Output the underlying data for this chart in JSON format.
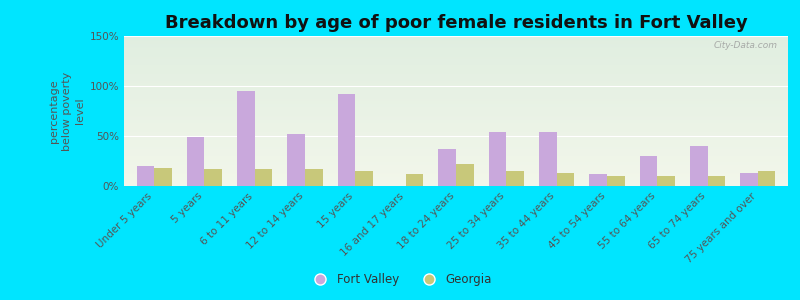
{
  "title": "Breakdown by age of poor female residents in Fort Valley",
  "ylabel": "percentage\nbelow poverty\nlevel",
  "categories": [
    "Under 5 years",
    "5 years",
    "6 to 11 years",
    "12 to 14 years",
    "15 years",
    "16 and 17 years",
    "18 to 24 years",
    "25 to 34 years",
    "35 to 44 years",
    "45 to 54 years",
    "55 to 64 years",
    "65 to 74 years",
    "75 years and over"
  ],
  "fort_valley": [
    20,
    49,
    95,
    52,
    92,
    0,
    37,
    54,
    54,
    12,
    30,
    40,
    13
  ],
  "georgia": [
    18,
    17,
    17,
    17,
    15,
    12,
    22,
    15,
    13,
    10,
    10,
    10,
    15
  ],
  "fort_valley_color": "#c9a8dc",
  "georgia_color": "#c8c87a",
  "outer_bg": "#00e5ff",
  "yticks": [
    0,
    50,
    100,
    150
  ],
  "ytick_labels": [
    "0%",
    "50%",
    "100%",
    "150%"
  ],
  "ylim": [
    0,
    150
  ],
  "title_fontsize": 13,
  "axis_label_fontsize": 8,
  "tick_fontsize": 7.5,
  "bar_width": 0.35,
  "watermark": "City-Data.com"
}
